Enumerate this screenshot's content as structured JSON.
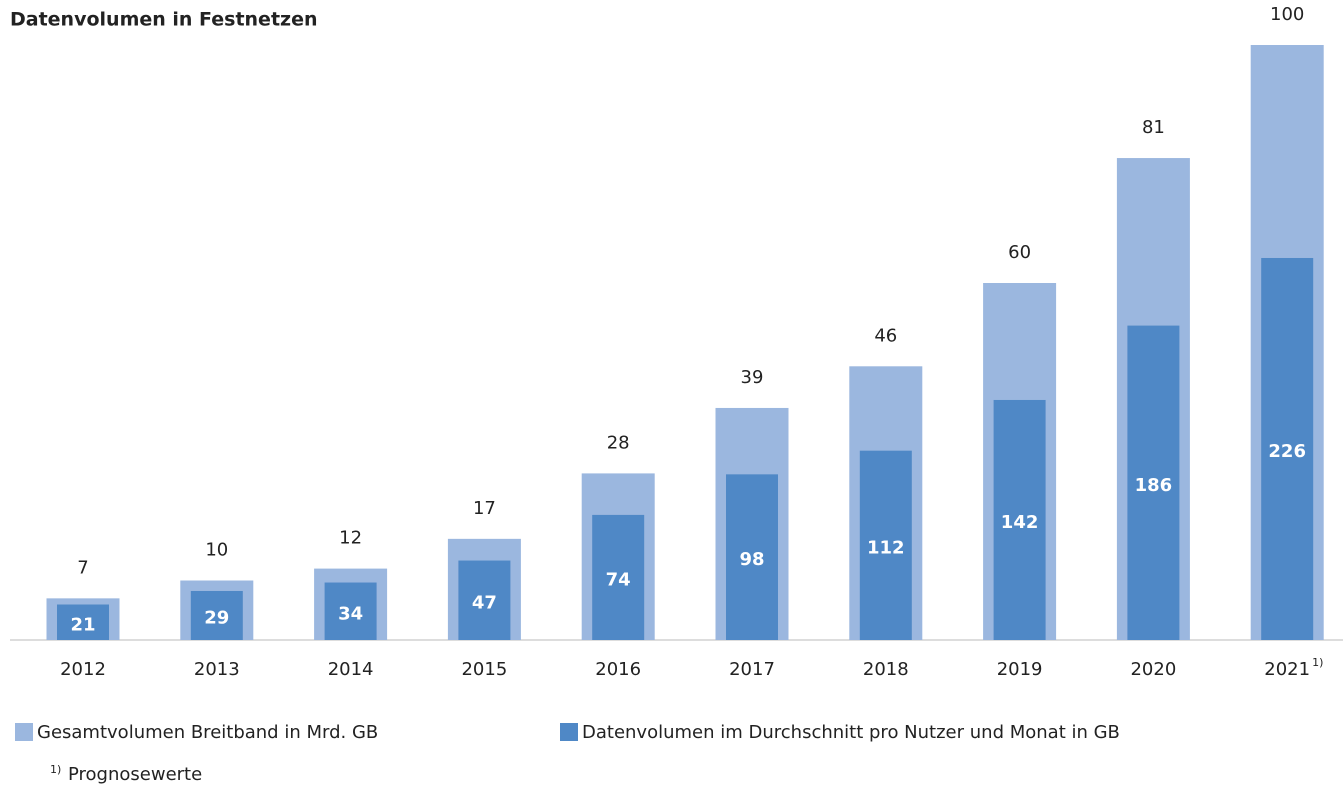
{
  "chart_data": {
    "type": "bar",
    "title": "Datenvolumen in Festnetzen",
    "categories": [
      "2012",
      "2013",
      "2014",
      "2015",
      "2016",
      "2017",
      "2018",
      "2019",
      "2020",
      "2021"
    ],
    "category_note": "1)",
    "series": [
      {
        "name": "Gesamtvolumen Breitband in Mrd. GB",
        "color": "#9bb7df",
        "axis": "y",
        "values": [
          7,
          10,
          12,
          17,
          28,
          39,
          46,
          60,
          81,
          100
        ]
      },
      {
        "name": "Datenvolumen im Durchschnitt pro Nutzer und Monat in GB",
        "color": "#4f88c6",
        "axis": "y2",
        "values": [
          21,
          29,
          34,
          47,
          74,
          98,
          112,
          142,
          186,
          226
        ]
      }
    ],
    "ylim": [
      0,
      100
    ],
    "y2lim": [
      0,
      352
    ],
    "legend": "bottom",
    "footnote": {
      "marker": "1)",
      "text": "Prognosewerte"
    }
  }
}
